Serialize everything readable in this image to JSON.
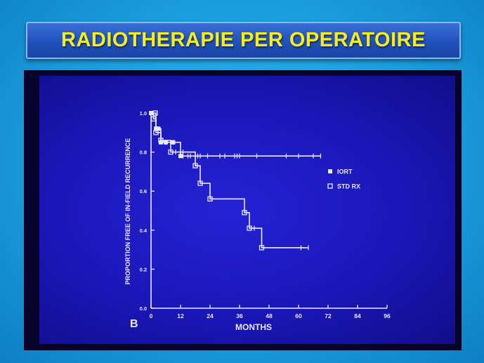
{
  "title": "RADIOTHERAPIE PER OPERATOIRE",
  "colors": {
    "title_text": "#f6ee1c",
    "title_box": "#2a5cc8",
    "slide_bg": "#1c19c4",
    "plot_ink": "#ece9ff"
  },
  "chart_data": {
    "type": "line",
    "panel_label": "B",
    "xlabel": "MONTHS",
    "ylabel": "PROPORTION FREE OF IN-FIELD RECURRENCE",
    "xlim": [
      0,
      96
    ],
    "ylim": [
      0,
      1.0
    ],
    "xticks": [
      "0",
      "12",
      "24",
      "36",
      "48",
      "60",
      "72",
      "84",
      "96"
    ],
    "yticks": [
      "0.0",
      "0.2",
      "0.4",
      "0.6",
      "0.8",
      "1.0"
    ],
    "grid": false,
    "legend_position": "right",
    "series": [
      {
        "name": "IORT",
        "marker": "filled-square",
        "points": [
          [
            0,
            1.0
          ],
          [
            2,
            0.92
          ],
          [
            3,
            0.92
          ],
          [
            4,
            0.85
          ],
          [
            6,
            0.85
          ],
          [
            9,
            0.85
          ],
          [
            12,
            0.78
          ],
          [
            69,
            0.78
          ]
        ],
        "censored": [
          6,
          9,
          13,
          15,
          16,
          18,
          19,
          20,
          23,
          28,
          30,
          34,
          35,
          36,
          43,
          55,
          60,
          66,
          69
        ]
      },
      {
        "name": "STD RX",
        "marker": "open-square",
        "points": [
          [
            0,
            1.0
          ],
          [
            1,
            0.97
          ],
          [
            2,
            0.9
          ],
          [
            4,
            0.86
          ],
          [
            8,
            0.8
          ],
          [
            18,
            0.73
          ],
          [
            20,
            0.64
          ],
          [
            24,
            0.56
          ],
          [
            38,
            0.49
          ],
          [
            40,
            0.41
          ],
          [
            45,
            0.31
          ],
          [
            64,
            0.31
          ]
        ],
        "censored": [
          10,
          13,
          42,
          61,
          64
        ]
      }
    ]
  }
}
